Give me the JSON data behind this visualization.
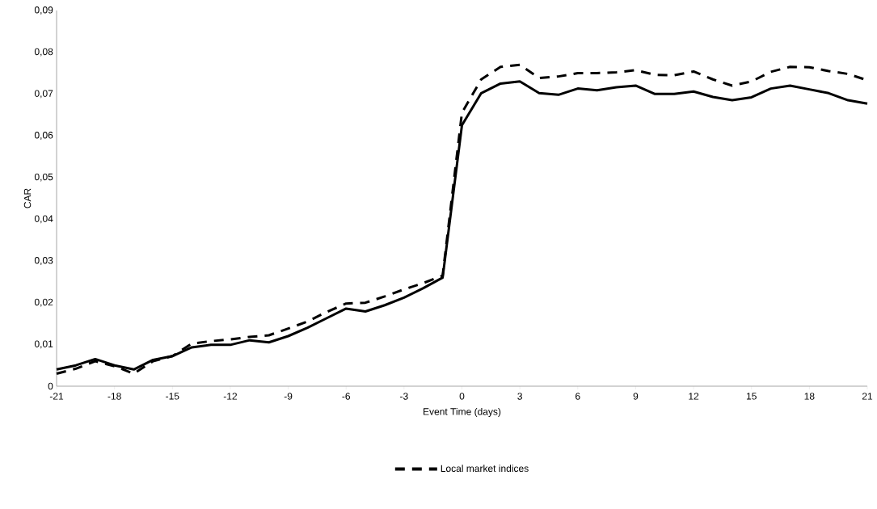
{
  "chart_data": {
    "type": "line",
    "xlabel": "Event Time (days)",
    "ylabel": "CAR",
    "x": [
      -21,
      -20,
      -19,
      -18,
      -17,
      -16,
      -15,
      -14,
      -13,
      -12,
      -11,
      -10,
      -9,
      -8,
      -7,
      -6,
      -5,
      -4,
      -3,
      -2,
      -1,
      0,
      1,
      2,
      3,
      4,
      5,
      6,
      7,
      8,
      9,
      10,
      11,
      12,
      13,
      14,
      15,
      16,
      17,
      18,
      19,
      20,
      21
    ],
    "series": [
      {
        "color": "#000000",
        "line_style": "solid",
        "values": [
          0.004,
          0.005,
          0.0065,
          0.005,
          0.004,
          0.0063,
          0.0072,
          0.0093,
          0.0099,
          0.0099,
          0.011,
          0.0105,
          0.012,
          0.014,
          0.0163,
          0.0186,
          0.0179,
          0.0194,
          0.0212,
          0.0235,
          0.026,
          0.0625,
          0.0702,
          0.0725,
          0.073,
          0.0702,
          0.0698,
          0.0713,
          0.0709,
          0.0716,
          0.072,
          0.07,
          0.07,
          0.0706,
          0.0693,
          0.0685,
          0.0692,
          0.0713,
          0.072,
          0.0711,
          0.0702,
          0.0685,
          0.0677
        ]
      },
      {
        "name": "Local market indices",
        "color": "#000000",
        "line_style": "dashed",
        "values": [
          0.003,
          0.0042,
          0.006,
          0.0048,
          0.003,
          0.006,
          0.0072,
          0.0102,
          0.0108,
          0.0112,
          0.0118,
          0.0122,
          0.0138,
          0.0155,
          0.0178,
          0.0198,
          0.02,
          0.0215,
          0.0232,
          0.0247,
          0.0265,
          0.0655,
          0.0735,
          0.0765,
          0.077,
          0.0738,
          0.0742,
          0.075,
          0.075,
          0.0752,
          0.0757,
          0.0746,
          0.0745,
          0.0754,
          0.0735,
          0.072,
          0.073,
          0.0753,
          0.0765,
          0.0764,
          0.0755,
          0.0748,
          0.0733
        ]
      }
    ],
    "xlim": [
      -21,
      21
    ],
    "xticks": [
      -21,
      -18,
      -15,
      -12,
      -9,
      -6,
      -3,
      0,
      3,
      6,
      9,
      12,
      15,
      18,
      21
    ],
    "ylim": [
      0,
      0.09
    ],
    "yticks": [
      0,
      {
        "value": 0.01,
        "label": "0,01"
      },
      {
        "value": 0.02,
        "label": "0,02"
      },
      {
        "value": 0.03,
        "label": "0,03"
      },
      {
        "value": 0.04,
        "label": "0,04"
      },
      {
        "value": 0.05,
        "label": "0,05"
      },
      {
        "value": 0.06,
        "label": "0,06"
      },
      {
        "value": 0.07,
        "label": "0,07"
      },
      {
        "value": 0.08,
        "label": "0,08"
      },
      {
        "value": 0.09,
        "label": "0,09"
      }
    ],
    "grid": false,
    "legend": "bottom",
    "marker": "none"
  }
}
